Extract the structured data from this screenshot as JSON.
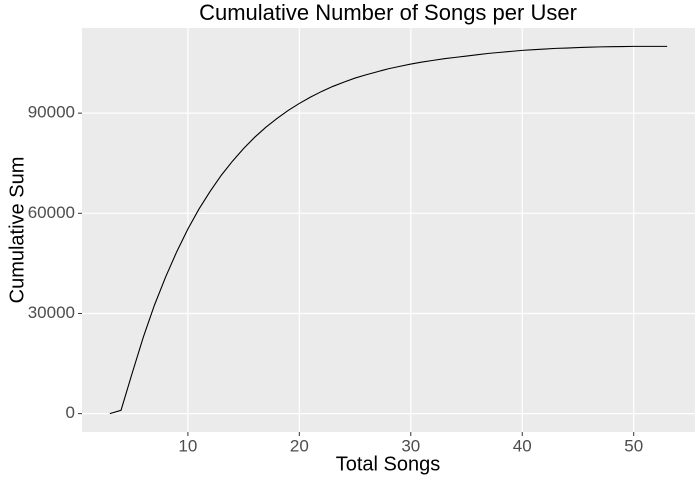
{
  "chart_data": {
    "type": "line",
    "title": "Cumulative Number of Songs per User",
    "x_label": "Total Songs",
    "y_label": "Cumulative Sum",
    "x": [
      3,
      4,
      5,
      6,
      7,
      8,
      9,
      10,
      11,
      12,
      13,
      14,
      15,
      16,
      17,
      18,
      19,
      20,
      21,
      22,
      23,
      24,
      25,
      26,
      27,
      28,
      29,
      30,
      31,
      32,
      33,
      34,
      35,
      36,
      37,
      38,
      39,
      40,
      41,
      42,
      43,
      44,
      45,
      46,
      47,
      48,
      49,
      50,
      51,
      52,
      53
    ],
    "values": [
      0,
      1000,
      12100,
      22900,
      32500,
      40900,
      48500,
      55300,
      61300,
      66600,
      71400,
      75600,
      79400,
      82800,
      85800,
      88400,
      90800,
      92900,
      94800,
      96500,
      98000,
      99300,
      100500,
      101500,
      102400,
      103300,
      104000,
      104700,
      105300,
      105800,
      106300,
      106700,
      107100,
      107500,
      107900,
      108200,
      108500,
      108800,
      109000,
      109200,
      109400,
      109500,
      109650,
      109750,
      109850,
      109900,
      109950,
      110000,
      110000,
      110000,
      110000
    ],
    "color": "#000000",
    "xlim": [
      0.5,
      55.5
    ],
    "xticks": [
      10,
      20,
      30,
      40,
      50
    ],
    "ylim": [
      -5500,
      115500
    ],
    "yticks": [
      0,
      30000,
      60000,
      90000
    ],
    "grid": true
  }
}
